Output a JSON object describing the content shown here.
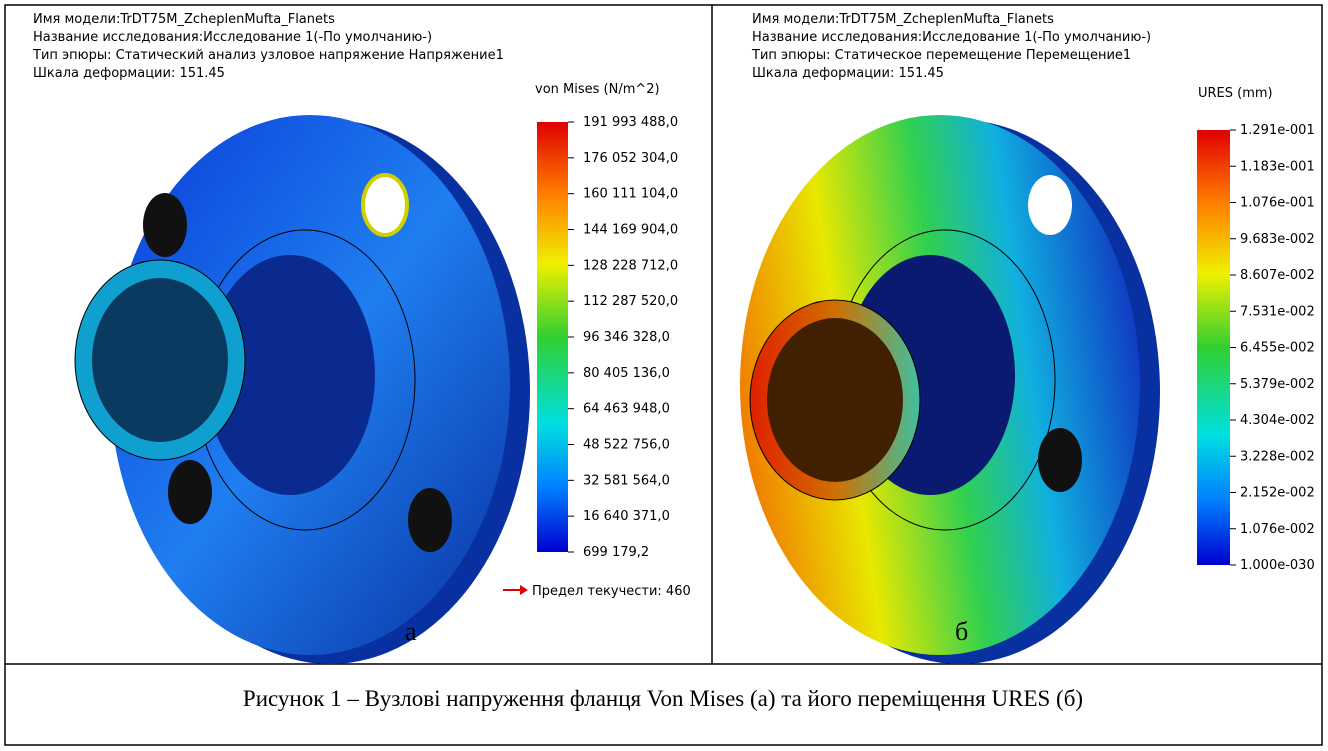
{
  "panels": [
    {
      "header": [
        "Имя модели:TrDT75M_ZcheplenMufta_Flanets",
        "Название исследования:Исследование 1(-По умолчанию-)",
        "Тип эпюры: Статический анализ узловое напряжение Напряжение1",
        "Шкала деформации: 151.45"
      ],
      "legend_title": "von Mises (N/m^2)",
      "legend_labels": [
        "191 993 488,0",
        "176 052 304,0",
        "160 111 104,0",
        "144 169 904,0",
        "128 228 712,0",
        "112 287 520,0",
        "96 346 328,0",
        "80 405 136,0",
        "64 463 948,0",
        "48 522 756,0",
        "32 581 564,0",
        "16 640 371,0",
        "699 179,2"
      ],
      "yield_label": "Предел текучести: 460",
      "letter": "а"
    },
    {
      "header": [
        "Имя модели:TrDT75M_ZcheplenMufta_Flanets",
        "Название исследования:Исследование 1(-По умолчанию-)",
        "Тип эпюры: Статическое перемещение Перемещение1",
        "Шкала деформации: 151.45"
      ],
      "legend_title": "URES (mm)",
      "legend_labels": [
        "1.291e-001",
        "1.183e-001",
        "1.076e-001",
        "9.683e-002",
        "8.607e-002",
        "7.531e-002",
        "6.455e-002",
        "5.379e-002",
        "4.304e-002",
        "3.228e-002",
        "2.152e-002",
        "1.076e-002",
        "1.000e-030"
      ],
      "letter": "б"
    }
  ],
  "caption": "Рисунок 1 – Вузлові напруження фланця Von Mises (а) та його переміщення URES (б)"
}
